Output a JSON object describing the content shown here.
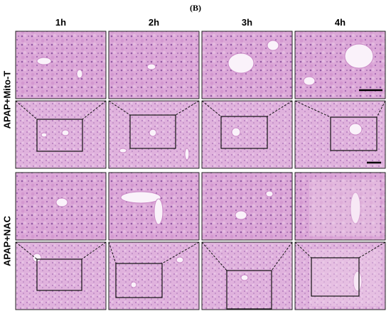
{
  "panel_label": "(B)",
  "columns": [
    "1h",
    "2h",
    "3h",
    "4h"
  ],
  "row_labels": [
    "APAP+Mito-T",
    "APAP+NAC"
  ]
}
